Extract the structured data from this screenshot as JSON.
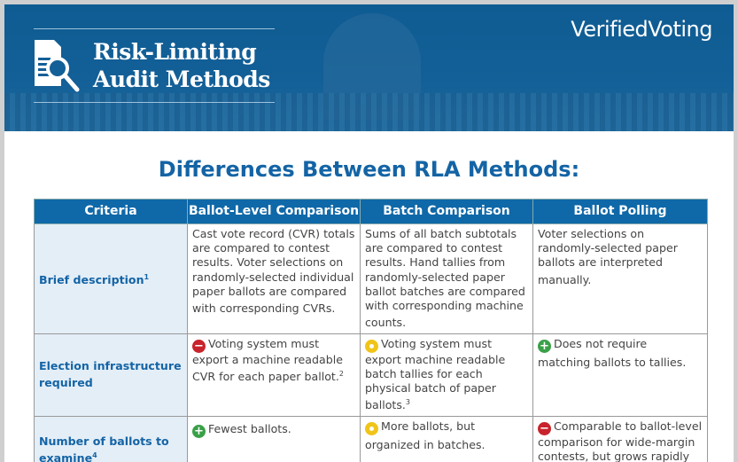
{
  "header": {
    "title_line1": "Risk-Limiting",
    "title_line2": "Audit Methods",
    "logo": "VerifiedVoting"
  },
  "heading": "Differences Between RLA Methods:",
  "table": {
    "columns": [
      "Criteria",
      "Ballot-Level Comparison",
      "Batch Comparison",
      "Ballot Polling"
    ],
    "rows": [
      {
        "criteria": "Brief description",
        "note": "1",
        "cells": [
          {
            "icon": "",
            "text": "Cast vote record (CVR) totals are compared to contest results. Voter selections on randomly-selected individual paper ballots are compared with corresponding CVRs.",
            "note": ""
          },
          {
            "icon": "",
            "text": "Sums of all batch subtotals are compared to contest results. Hand tallies from randomly-selected paper ballot batches are compared with corresponding machine counts.",
            "note": ""
          },
          {
            "icon": "",
            "text": "Voter selections on randomly-selected paper ballots are interpreted manually.",
            "note": ""
          }
        ]
      },
      {
        "criteria": "Election infrastructure required",
        "note": "",
        "cells": [
          {
            "icon": "minus",
            "text": "Voting system must export a machine readable CVR for each paper ballot.",
            "note": "2"
          },
          {
            "icon": "neutral",
            "text": "Voting system must export machine readable batch tallies for each physical batch of paper ballots.",
            "note": "3"
          },
          {
            "icon": "plus",
            "text": "Does not require matching ballots to tallies.",
            "note": ""
          }
        ]
      },
      {
        "criteria": "Number of ballots to examine",
        "note": "4",
        "cells": [
          {
            "icon": "plus",
            "text": "Fewest ballots.",
            "note": ""
          },
          {
            "icon": "neutral",
            "text": "More ballots, but organized in batches.",
            "note": ""
          },
          {
            "icon": "minus",
            "text": "Comparable to ballot-level comparison for wide-margin contests, but grows rapidly as margin narrows.",
            "note": ""
          }
        ]
      }
    ]
  },
  "colors": {
    "banner": "#135f97",
    "accent": "#1464a5",
    "header_row": "#0f68a8",
    "criteria_bg": "#e4eef7",
    "minus": "#c8232c",
    "plus": "#3aa048",
    "neutral": "#f0c419"
  }
}
